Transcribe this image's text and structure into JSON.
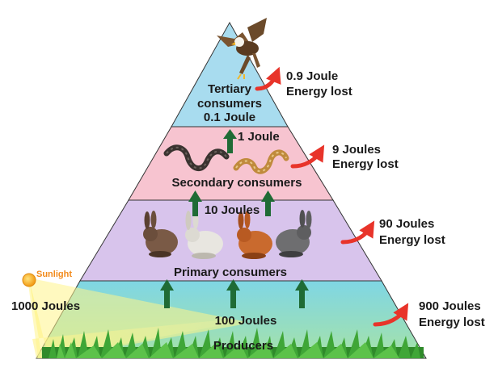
{
  "levels": {
    "tertiary": {
      "name_line1": "Tertiary",
      "name_line2": "consumers",
      "energy": "0.9 Joule",
      "lost": "Energy lost",
      "passed": "0.1 Joule"
    },
    "secondary": {
      "name": "Secondary consumers",
      "energy": "9 Joules",
      "lost": "Energy lost",
      "passed": "1 Joule"
    },
    "primary": {
      "name": "Primary consumers",
      "energy": "90 Joules",
      "lost": "Energy lost",
      "passed": "10 Joules"
    },
    "producers": {
      "name": "Producers",
      "energy": "900 Joules",
      "lost": "Energy lost",
      "passed": "100 Joules"
    }
  },
  "sunlight": {
    "label": "Sunlight",
    "energy": "1000 Joules"
  },
  "colors": {
    "tertiary": "#a8dcef",
    "secondary": "#f7c4d0",
    "primary": "#d8c4ec",
    "producers_top": "#7fd8e2",
    "producers_bottom": "#9fe0a8",
    "arrow_green": "#1f6b35",
    "arrow_red": "#e8342a",
    "sun": "#f4a11d",
    "sunlight_text": "#f28a1a"
  }
}
